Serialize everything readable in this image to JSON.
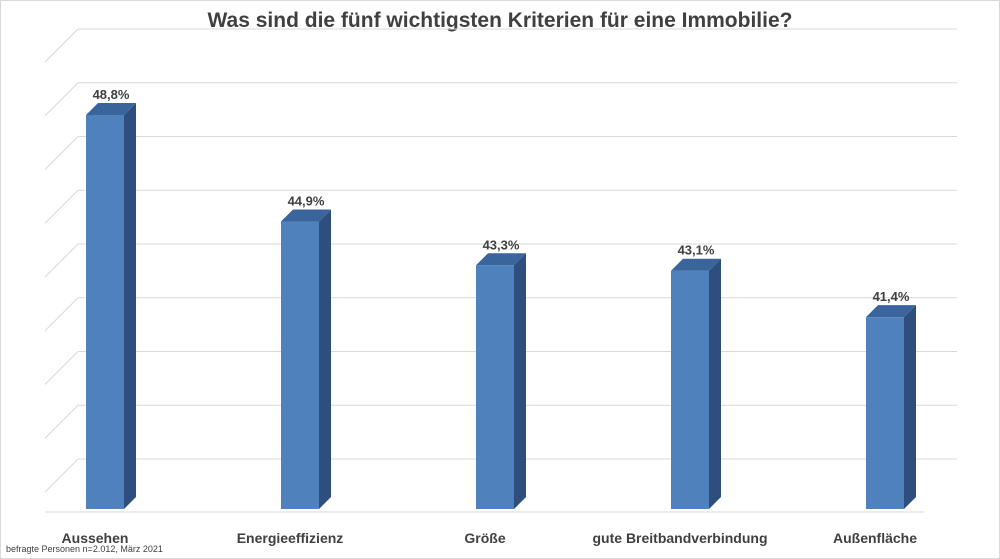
{
  "chart_data": {
    "type": "bar",
    "title": "Was sind die fünf wichtigsten Kriterien für eine Immobilie?",
    "categories": [
      "Aussehen",
      "Energieeffizienz",
      "Größe",
      "gute Breitbandverbindung",
      "Außenfläche"
    ],
    "values": [
      48.8,
      44.9,
      43.3,
      43.1,
      41.4
    ],
    "value_labels": [
      "48,8%",
      "44,9%",
      "43,3%",
      "43,1%",
      "41,4%"
    ],
    "ylim": [
      35,
      50
    ],
    "grid": true,
    "legend": "none",
    "bar_color": "#4F81BD",
    "bar_side_color": "#2E4E7E",
    "bar_top_color": "#3A649C",
    "note": "befragte Personen n=2.012, März 2021"
  }
}
